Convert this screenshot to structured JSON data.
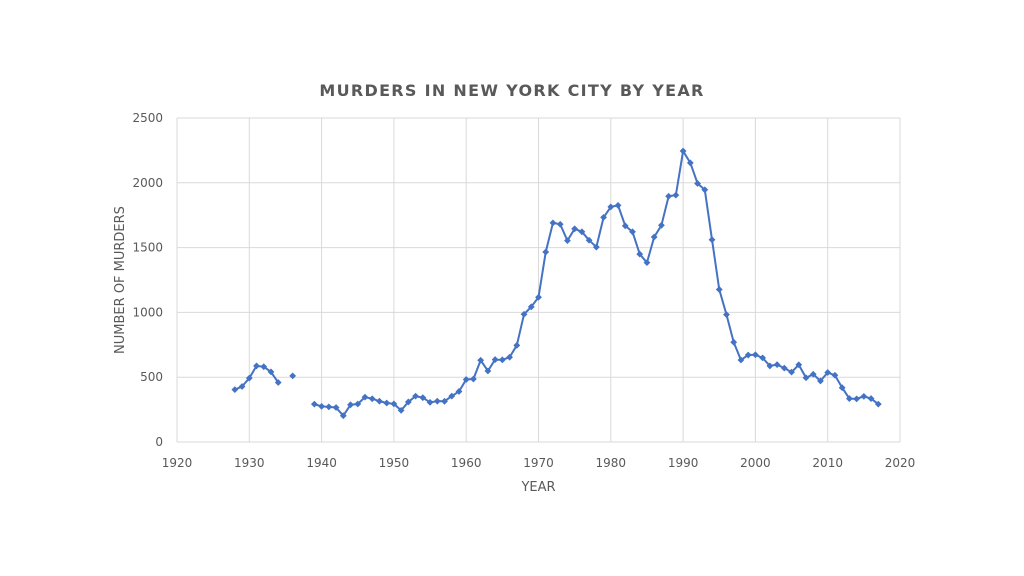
{
  "chart_data": {
    "type": "line",
    "title": "MURDERS IN NEW YORK CITY BY YEAR",
    "xlabel": "YEAR",
    "ylabel": "NUMBER OF MURDERS",
    "xlim": [
      1920,
      2020
    ],
    "ylim": [
      0,
      2500
    ],
    "xticks": [
      1920,
      1930,
      1940,
      1950,
      1960,
      1970,
      1980,
      1990,
      2000,
      2010,
      2020
    ],
    "yticks": [
      0,
      500,
      1000,
      1500,
      2000,
      2500
    ],
    "grid": true,
    "legend": "none",
    "color": "#4472c4",
    "marker": "diamond",
    "series": [
      {
        "segments": [
          [
            [
              1928,
              404
            ],
            [
              1929,
              428
            ],
            [
              1930,
              493
            ],
            [
              1931,
              587
            ],
            [
              1932,
              581
            ],
            [
              1933,
              541
            ],
            [
              1934,
              459
            ]
          ],
          [
            [
              1936,
              510
            ]
          ],
          [
            [
              1939,
              292
            ],
            [
              1940,
              275
            ],
            [
              1941,
              271
            ],
            [
              1942,
              266
            ],
            [
              1943,
              203
            ],
            [
              1944,
              287
            ],
            [
              1945,
              293
            ],
            [
              1946,
              346
            ],
            [
              1947,
              334
            ],
            [
              1948,
              315
            ],
            [
              1949,
              301
            ],
            [
              1950,
              294
            ],
            [
              1951,
              244
            ],
            [
              1952,
              309
            ],
            [
              1953,
              354
            ],
            [
              1954,
              342
            ],
            [
              1955,
              306
            ],
            [
              1956,
              315
            ],
            [
              1957,
              314
            ],
            [
              1958,
              354
            ],
            [
              1959,
              390
            ],
            [
              1960,
              482
            ],
            [
              1961,
              486
            ],
            [
              1962,
              631
            ],
            [
              1963,
              548
            ],
            [
              1964,
              636
            ],
            [
              1965,
              634
            ],
            [
              1966,
              654
            ],
            [
              1967,
              746
            ],
            [
              1968,
              986
            ],
            [
              1969,
              1043
            ],
            [
              1970,
              1117
            ],
            [
              1971,
              1466
            ],
            [
              1972,
              1691
            ],
            [
              1973,
              1680
            ],
            [
              1974,
              1554
            ],
            [
              1975,
              1645
            ],
            [
              1976,
              1622
            ],
            [
              1977,
              1557
            ],
            [
              1978,
              1504
            ],
            [
              1979,
              1733
            ],
            [
              1980,
              1814
            ],
            [
              1981,
              1826
            ],
            [
              1982,
              1668
            ],
            [
              1983,
              1622
            ],
            [
              1984,
              1450
            ],
            [
              1985,
              1384
            ],
            [
              1986,
              1582
            ],
            [
              1987,
              1672
            ],
            [
              1988,
              1896
            ],
            [
              1989,
              1905
            ],
            [
              1990,
              2245
            ],
            [
              1991,
              2154
            ],
            [
              1992,
              1995
            ],
            [
              1993,
              1946
            ],
            [
              1994,
              1561
            ],
            [
              1995,
              1177
            ],
            [
              1996,
              983
            ],
            [
              1997,
              770
            ],
            [
              1998,
              633
            ],
            [
              1999,
              671
            ],
            [
              2000,
              673
            ],
            [
              2001,
              649
            ],
            [
              2002,
              587
            ],
            [
              2003,
              597
            ],
            [
              2004,
              570
            ],
            [
              2005,
              539
            ],
            [
              2006,
              596
            ],
            [
              2007,
              496
            ],
            [
              2008,
              523
            ],
            [
              2009,
              471
            ],
            [
              2010,
              536
            ],
            [
              2011,
              515
            ],
            [
              2012,
              419
            ],
            [
              2013,
              335
            ],
            [
              2014,
              333
            ],
            [
              2015,
              352
            ],
            [
              2016,
              335
            ],
            [
              2017,
              292
            ]
          ]
        ]
      }
    ]
  }
}
